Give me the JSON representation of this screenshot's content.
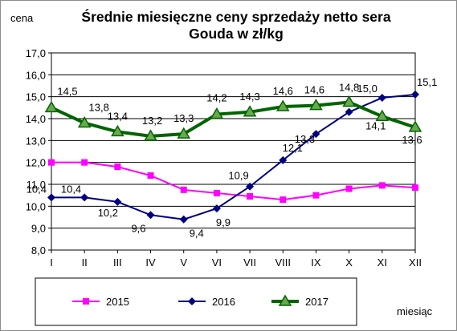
{
  "chart_data": {
    "type": "line",
    "title_line1": "Średnie miesięczne ceny sprzedaży netto sera",
    "title_line2": "Gouda w zł/kg",
    "ylabel": "cena",
    "xlabel": "miesiąc",
    "categories": [
      "I",
      "II",
      "III",
      "IV",
      "V",
      "VI",
      "VII",
      "VIII",
      "IX",
      "X",
      "XI",
      "XII"
    ],
    "ylim": [
      8.0,
      17.0
    ],
    "yticks": [
      "8,0",
      "9,0",
      "10,0",
      "11,0",
      "12,0",
      "13,0",
      "14,0",
      "15,0",
      "16,0",
      "17,0"
    ],
    "grid": true,
    "legend": "bottom",
    "series": [
      {
        "name": "2015",
        "color": "#ff00ff",
        "marker": "square",
        "values": [
          12.0,
          12.0,
          11.8,
          11.4,
          10.75,
          10.6,
          10.45,
          10.3,
          10.5,
          10.8,
          10.95,
          10.85
        ],
        "labels": [
          "",
          "",
          "",
          "",
          "",
          "",
          "",
          "",
          "",
          "",
          "",
          ""
        ]
      },
      {
        "name": "2016",
        "color": "#000080",
        "marker": "diamond",
        "values": [
          10.4,
          10.4,
          10.2,
          9.6,
          9.4,
          9.9,
          10.9,
          12.1,
          13.3,
          14.3,
          14.95,
          15.1
        ],
        "labels": [
          "10,4",
          "10,4",
          "10,2",
          "9,6",
          "9,4",
          "9,9",
          "10,9",
          "12,1",
          "13,3",
          "",
          "15,0",
          "15,1"
        ]
      },
      {
        "name": "2017",
        "color": "#006400",
        "marker": "triangle",
        "values": [
          14.5,
          13.8,
          13.4,
          13.2,
          13.3,
          14.2,
          14.3,
          14.55,
          14.6,
          14.75,
          14.1,
          13.6
        ],
        "labels": [
          "14,5",
          "13,8",
          "13,4",
          "13,2",
          "13,3",
          "14,2",
          "14,3",
          "14,6",
          "14,6",
          "14,8",
          "14,1",
          "13,6"
        ]
      }
    ]
  }
}
